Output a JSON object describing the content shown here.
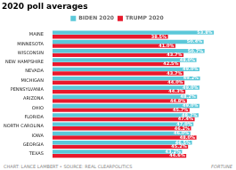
{
  "chart_data": {
    "type": "bar",
    "orientation": "horizontal",
    "title": "2020 poll averages",
    "categories": [
      "MAINE",
      "MINNESOTA",
      "WISCONSIN",
      "NEW HAMPSHIRE",
      "NEVADA",
      "MICHIGAN",
      "PENNSYLVANIA",
      "ARIZONA",
      "OHIO",
      "FLORIDA",
      "NORTH CAROLINA",
      "IOWA",
      "GEORGIA",
      "TEXAS"
    ],
    "series": [
      {
        "name": "BIDEN 2020",
        "color": "#5bc8d9",
        "values": [
          53.8,
          50.4,
          50.7,
          48.0,
          49.0,
          49.2,
          49.0,
          48.2,
          49.0,
          48.7,
          47.0,
          46.0,
          46.5,
          43.2
        ],
        "value_labels": [
          "53.8%",
          "50.4%",
          "50.7%",
          "48.0%",
          "49.0%",
          "49.2%",
          "49.0%",
          "48.2%",
          "49.0%",
          "48.7%",
          "47.0%",
          "46.0%",
          "46.5%",
          "43.2%"
        ]
      },
      {
        "name": "TRUMP 2020",
        "color": "#e8192c",
        "values": [
          38.5,
          41.0,
          43.7,
          42.5,
          43.7,
          44.0,
          44.3,
          44.8,
          45.7,
          47.4,
          46.2,
          48.0,
          45.2,
          44.6
        ],
        "value_labels": [
          "38.5%",
          "41.0%",
          "43.7%",
          "42.5%",
          "43.7%",
          "44.0%",
          "44.3%",
          "44.8%",
          "45.7%",
          "47.4%",
          "46.2%",
          "48.0%",
          "45.2%",
          "44.6%"
        ]
      }
    ],
    "xlim": [
      0,
      60
    ],
    "grid": false,
    "tick_labels": "y",
    "data_labels": true,
    "legend": "top",
    "annotations": [
      "CHART: LANCE LAMBERT • SOURCE: REAL CLEARPOLITICS",
      "FORTUNE"
    ]
  }
}
